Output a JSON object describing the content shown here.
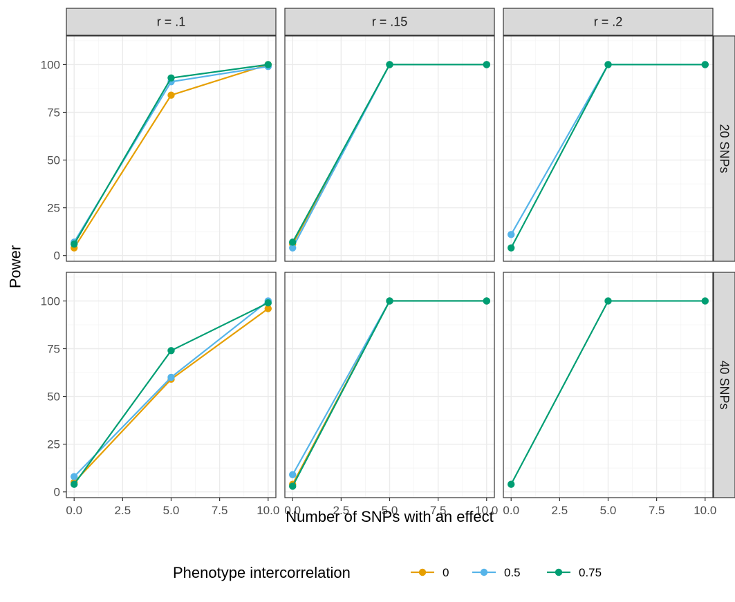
{
  "chart_data": {
    "type": "line",
    "xlabel": "Number of SNPs with an effect",
    "ylabel": "Power",
    "xlim": [
      -0.4,
      10.4
    ],
    "ylim": [
      -3,
      115
    ],
    "xticks": [
      0,
      2.5,
      5,
      7.5,
      10
    ],
    "xtick_labels": [
      "0.0",
      "2.5",
      "5.0",
      "7.5",
      "10.0"
    ],
    "yticks": [
      0,
      25,
      50,
      75,
      100
    ],
    "ytick_labels": [
      "0",
      "25",
      "50",
      "75",
      "100"
    ],
    "grid": true,
    "legend": {
      "title": "Phenotype intercorrelation",
      "position": "bottom",
      "entries": [
        {
          "name": "0",
          "color": "#E69F00"
        },
        {
          "name": "0.5",
          "color": "#56B4E9"
        },
        {
          "name": "0.75",
          "color": "#009E73"
        }
      ]
    },
    "col_facets": [
      "r = .1",
      "r = .15",
      "r = .2"
    ],
    "row_facets": [
      "20 SNPs",
      "40 SNPs"
    ],
    "panels": [
      {
        "row": 0,
        "col": 0,
        "series": [
          {
            "name": "0",
            "x": [
              0,
              5,
              10
            ],
            "y": [
              4,
              84,
              100
            ]
          },
          {
            "name": "0.5",
            "x": [
              0,
              5,
              10
            ],
            "y": [
              7,
              91,
              99
            ]
          },
          {
            "name": "0.75",
            "x": [
              0,
              5,
              10
            ],
            "y": [
              6,
              93,
              100
            ]
          }
        ]
      },
      {
        "row": 0,
        "col": 1,
        "series": [
          {
            "name": "0",
            "x": [
              0,
              5,
              10
            ],
            "y": [
              6,
              100,
              100
            ]
          },
          {
            "name": "0.5",
            "x": [
              0,
              5,
              10
            ],
            "y": [
              4,
              100,
              100
            ]
          },
          {
            "name": "0.75",
            "x": [
              0,
              5,
              10
            ],
            "y": [
              7,
              100,
              100
            ]
          }
        ]
      },
      {
        "row": 0,
        "col": 2,
        "series": [
          {
            "name": "0.5",
            "x": [
              0,
              5,
              10
            ],
            "y": [
              11,
              100,
              100
            ]
          },
          {
            "name": "0.75",
            "x": [
              0,
              5,
              10
            ],
            "y": [
              4,
              100,
              100
            ]
          }
        ]
      },
      {
        "row": 1,
        "col": 0,
        "series": [
          {
            "name": "0",
            "x": [
              0,
              5,
              10
            ],
            "y": [
              5,
              59,
              96
            ]
          },
          {
            "name": "0.5",
            "x": [
              0,
              5,
              10
            ],
            "y": [
              8,
              60,
              100
            ]
          },
          {
            "name": "0.75",
            "x": [
              0,
              5,
              10
            ],
            "y": [
              4,
              74,
              99
            ]
          }
        ]
      },
      {
        "row": 1,
        "col": 1,
        "series": [
          {
            "name": "0",
            "x": [
              0,
              5,
              10
            ],
            "y": [
              4,
              100,
              100
            ]
          },
          {
            "name": "0.5",
            "x": [
              0,
              5,
              10
            ],
            "y": [
              9,
              100,
              100
            ]
          },
          {
            "name": "0.75",
            "x": [
              0,
              5,
              10
            ],
            "y": [
              3,
              100,
              100
            ]
          }
        ]
      },
      {
        "row": 1,
        "col": 2,
        "series": [
          {
            "name": "0.75",
            "x": [
              0,
              5,
              10
            ],
            "y": [
              4,
              100,
              100
            ]
          }
        ]
      }
    ]
  }
}
